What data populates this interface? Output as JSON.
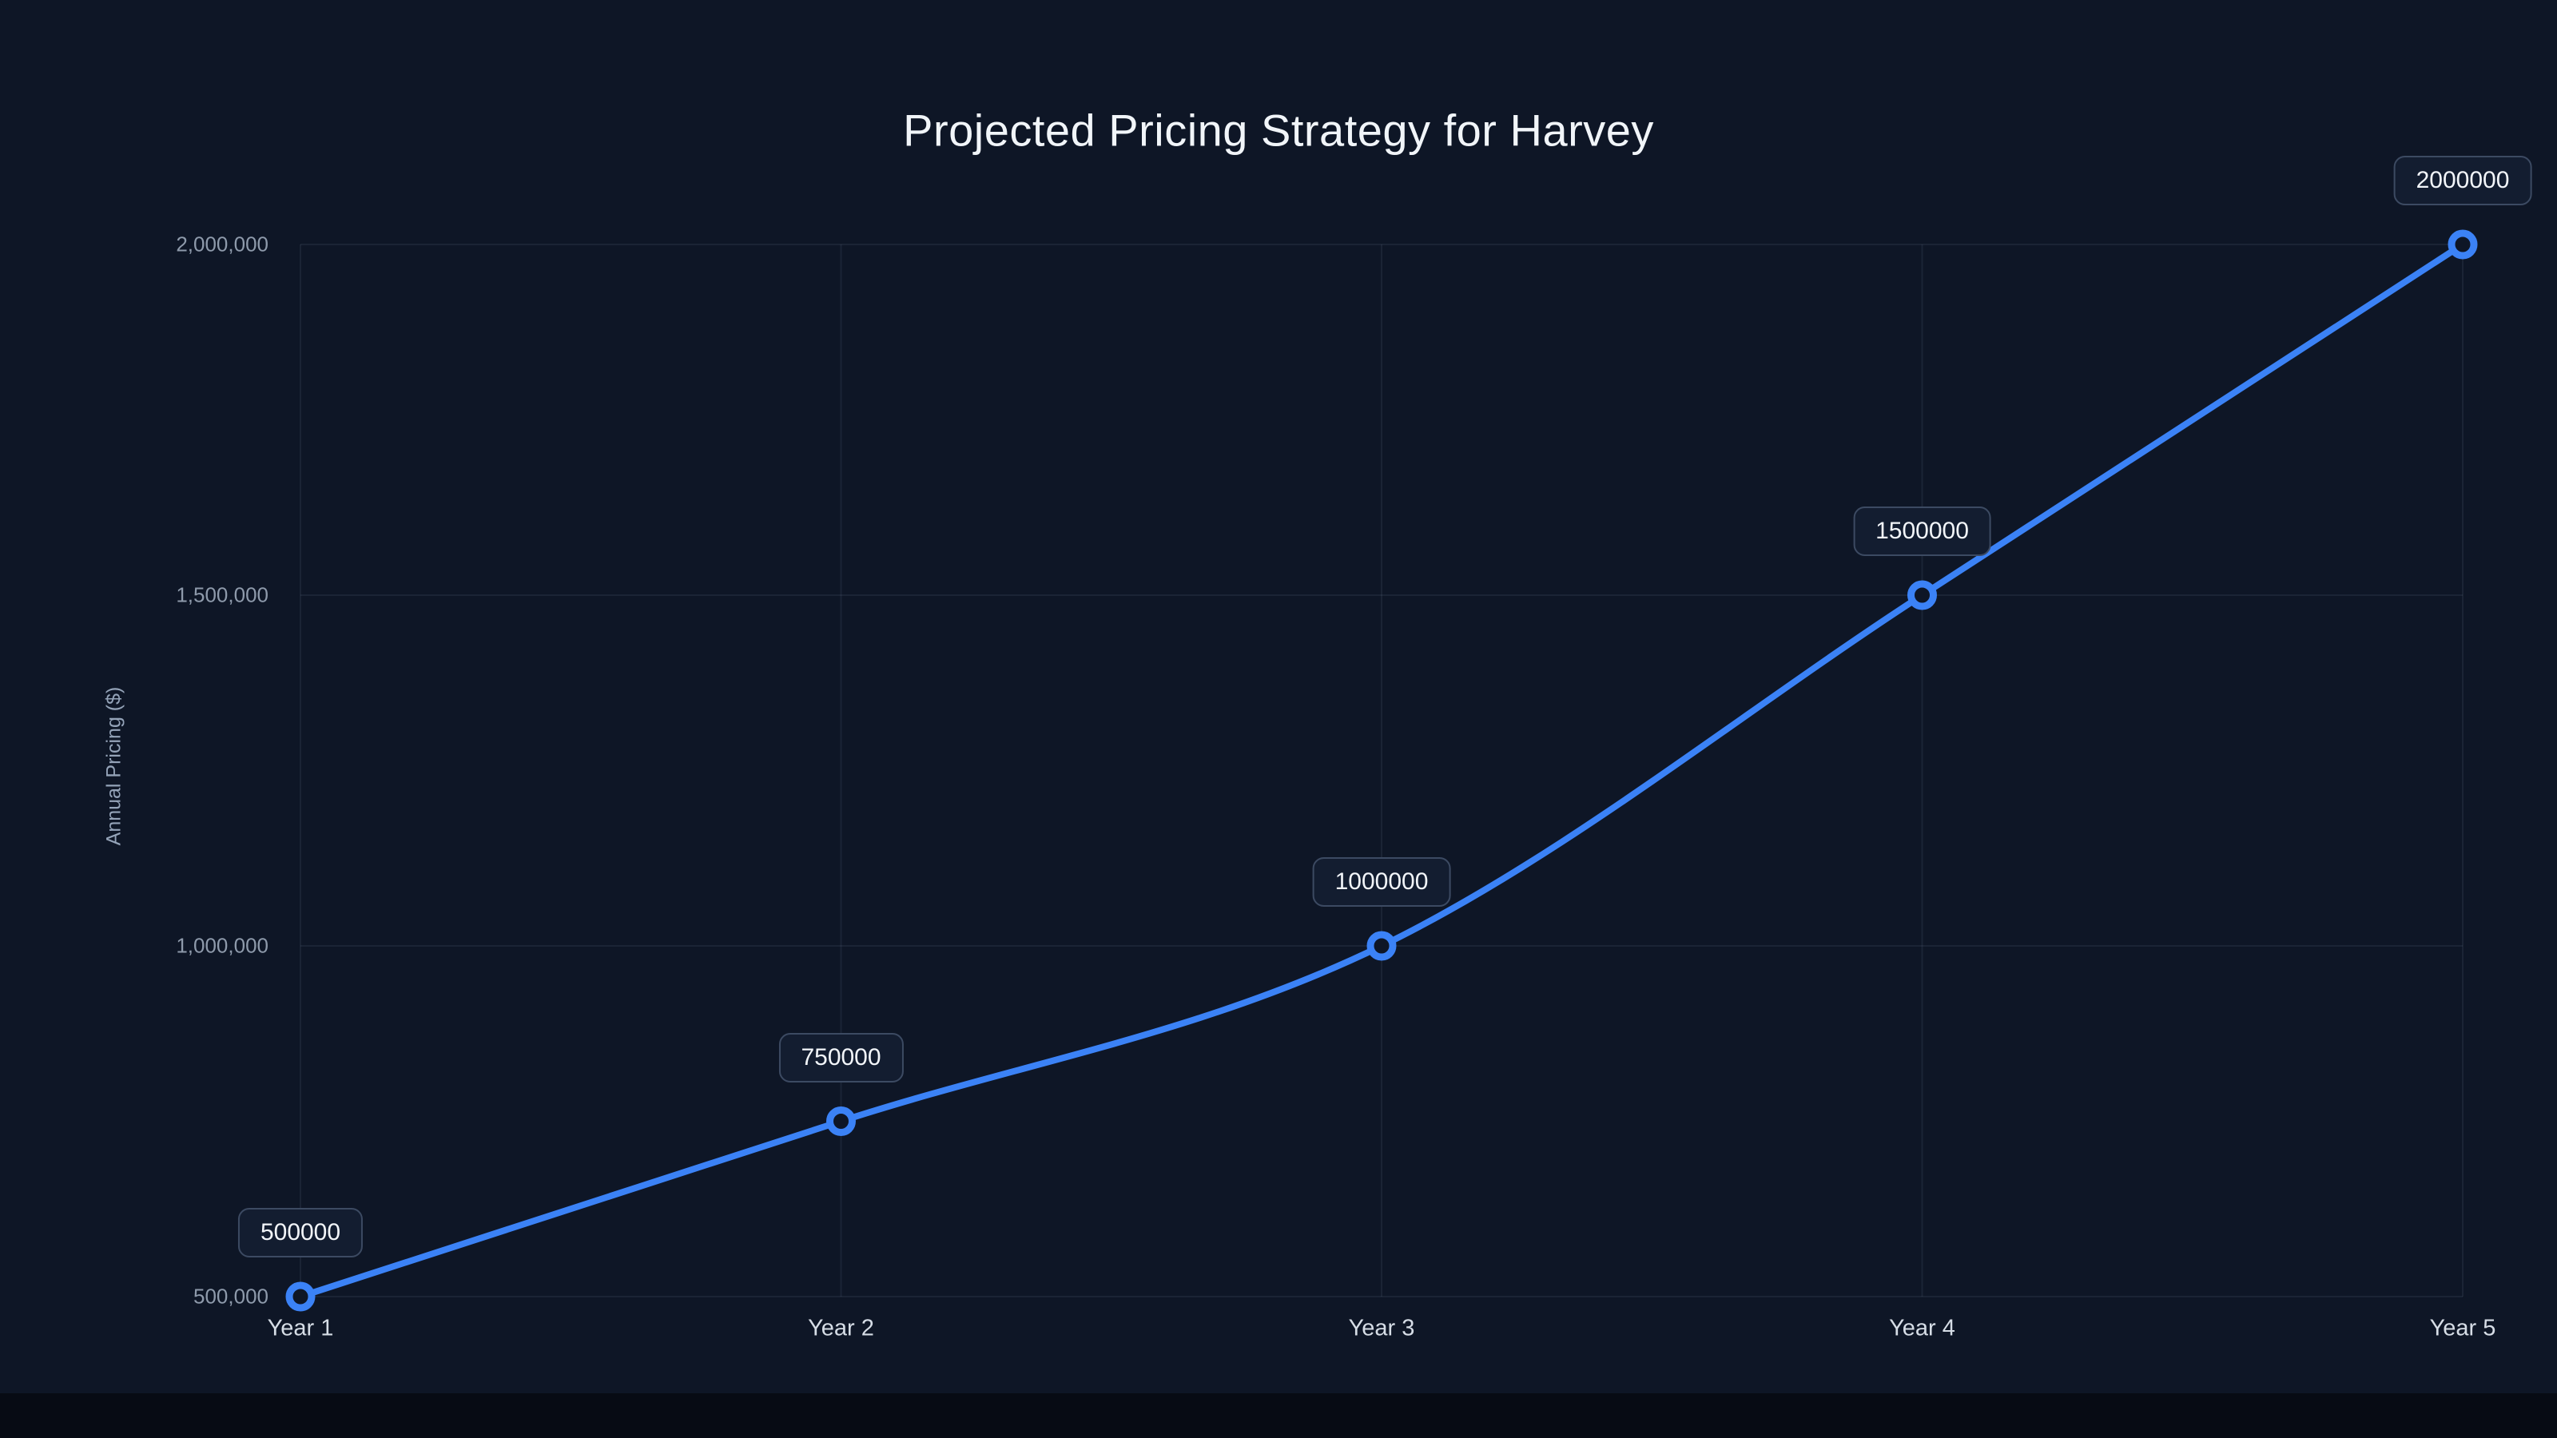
{
  "chart_data": {
    "type": "line",
    "title": "Projected Pricing Strategy for Harvey",
    "ylabel": "Annual Pricing ($)",
    "xlabel": "",
    "categories": [
      "Year 1",
      "Year 2",
      "Year 3",
      "Year 4",
      "Year 5"
    ],
    "values": [
      500000,
      750000,
      1000000,
      1500000,
      2000000
    ],
    "point_labels": [
      "500000",
      "750000",
      "1000000",
      "1500000",
      "2000000"
    ],
    "ylim": [
      500000,
      2000000
    ],
    "yticks": [
      500000,
      1000000,
      1500000,
      2000000
    ],
    "ytick_labels": [
      "500,000",
      "1,000,000",
      "1,500,000",
      "2,000,000"
    ],
    "grid": true,
    "legend": false,
    "colors": {
      "line": "#3b82f6",
      "marker_fill": "#0e1626",
      "background": "#0e1626",
      "gridline": "rgba(148,163,184,0.10)",
      "title_text": "#f1f5f9",
      "tick_text": "#8e9aab"
    }
  }
}
